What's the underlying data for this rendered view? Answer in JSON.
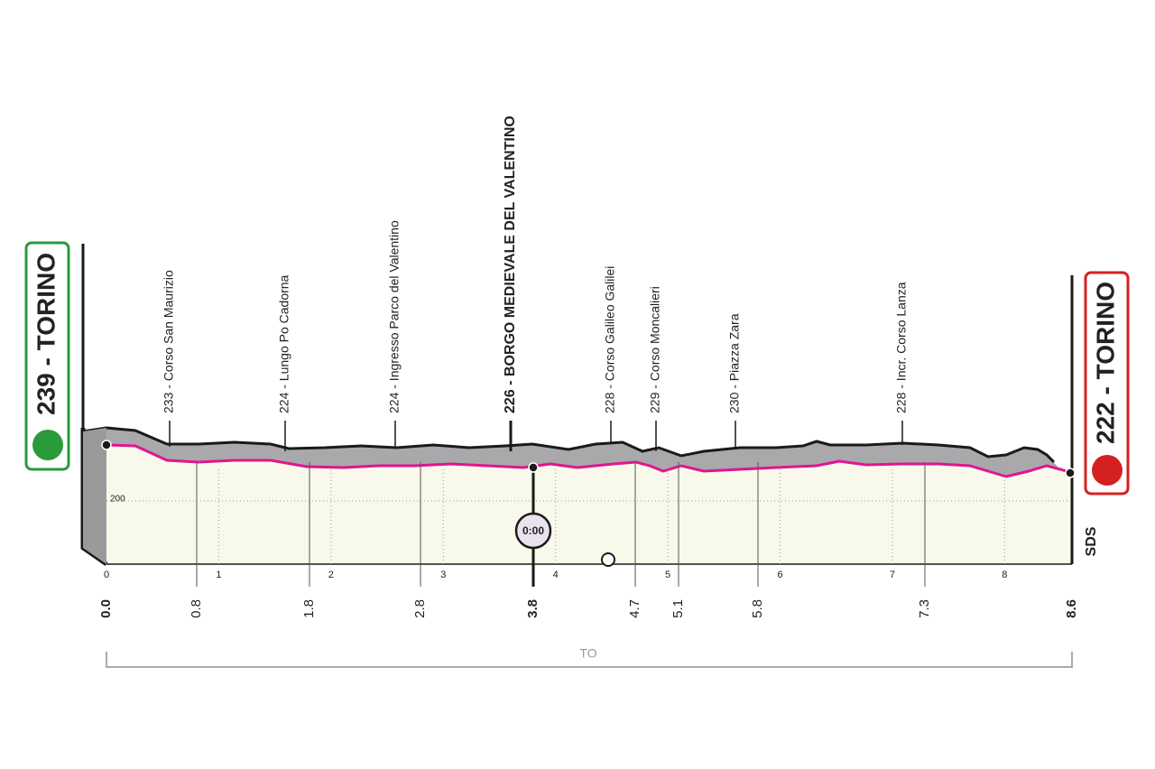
{
  "start": {
    "label": "239 - TORINO"
  },
  "finish": {
    "label": "222 - TORINO"
  },
  "waypoints": [
    {
      "label": "233 - Corso San Maurizio"
    },
    {
      "label": "224 - Lungo Po Cadorna"
    },
    {
      "label": "224 - Ingresso Parco del Valentino"
    },
    {
      "label": "226 - BORGO MEDIEVALE DEL VALENTINO"
    },
    {
      "label": "228 - Corso Galileo Galilei"
    },
    {
      "label": "229 - Corso Moncalieri"
    },
    {
      "label": "230 - Piazza Zara"
    },
    {
      "label": "228 - Incr. Corso Lanza"
    }
  ],
  "km_ticks": [
    "0",
    "1",
    "2",
    "3",
    "4",
    "5",
    "6",
    "7",
    "8"
  ],
  "distances": [
    "0.0",
    "0.8",
    "1.8",
    "2.8",
    "3.8",
    "4.7",
    "5.1",
    "5.8",
    "7.3",
    "8.6"
  ],
  "grid_label": "200",
  "timer": "0:00",
  "bracket_label": "TO",
  "logo": "SDS"
}
